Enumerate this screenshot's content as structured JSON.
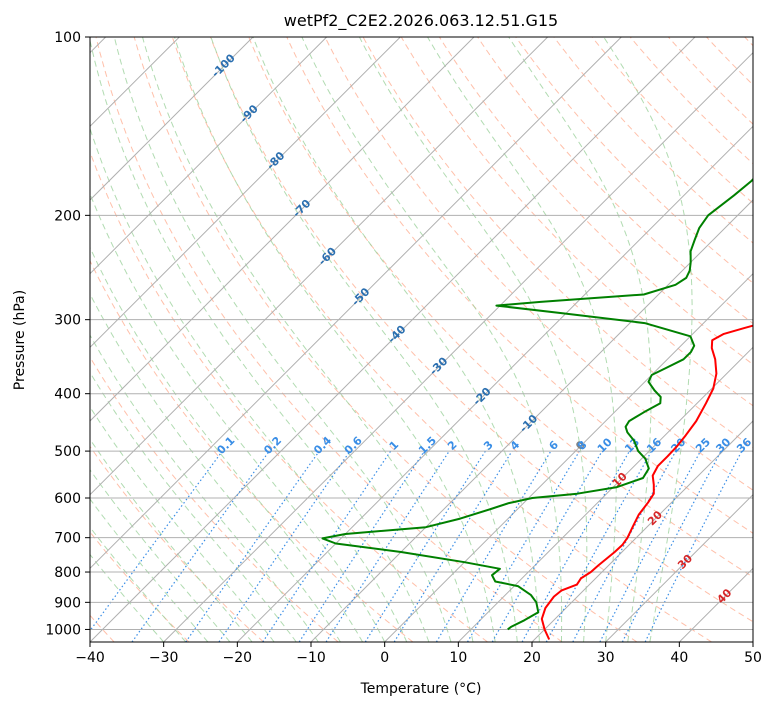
{
  "chart_data": {
    "type": "line",
    "title": "wetPf2_C2E2.2026.063.12.51.G15",
    "xlabel": "Temperature (°C)",
    "ylabel": "Pressure (hPa)",
    "xlim": [
      -40,
      50
    ],
    "ylim": [
      1050,
      100
    ],
    "y_scale": "log",
    "x_ticks": [
      -40,
      -30,
      -20,
      -10,
      0,
      10,
      20,
      30,
      40,
      50
    ],
    "y_ticks": [
      100,
      200,
      300,
      400,
      500,
      600,
      700,
      800,
      900,
      1000
    ],
    "grid": true,
    "colors": {
      "temperature": "#ff0000",
      "dewpoint": "#008000",
      "isotherm": "#b0b0b0",
      "dry_adiabat": "#ffb59b",
      "moist_adiabat": "#9ed29e",
      "mixing_ratio": "#3a8ee6",
      "freezing_level_label": "#808080",
      "isotherm_label": "#2b6fb0",
      "warm_isotherm_label": "#d62728"
    },
    "series": [
      {
        "key": "temperature",
        "points": [
          [
            22.0,
            1040
          ],
          [
            20.0,
            1000
          ],
          [
            18.2,
            960
          ],
          [
            17.2,
            920
          ],
          [
            16.8,
            880
          ],
          [
            17.0,
            860
          ],
          [
            18.3,
            840
          ],
          [
            18.0,
            820
          ],
          [
            18.5,
            800
          ],
          [
            18.6,
            780
          ],
          [
            19.0,
            740
          ],
          [
            19.1,
            720
          ],
          [
            18.8,
            700
          ],
          [
            18.0,
            670
          ],
          [
            17.2,
            640
          ],
          [
            16.8,
            610
          ],
          [
            16.4,
            590
          ],
          [
            15.2,
            570
          ],
          [
            13.8,
            550
          ],
          [
            13.2,
            530
          ],
          [
            13.2,
            510
          ],
          [
            13.1,
            490
          ],
          [
            12.8,
            470
          ],
          [
            12.3,
            445
          ],
          [
            11.2,
            415
          ],
          [
            10.2,
            392
          ],
          [
            8.6,
            370
          ],
          [
            6.5,
            350
          ],
          [
            4.5,
            335
          ],
          [
            3.5,
            325
          ],
          [
            4.2,
            317
          ],
          [
            6.2,
            310
          ],
          [
            8.5,
            302
          ],
          [
            10.0,
            295
          ],
          [
            10.8,
            285
          ],
          [
            11.0,
            270
          ],
          [
            10.7,
            250
          ],
          [
            10.5,
            232
          ],
          [
            9.5,
            213
          ],
          [
            7.8,
            195
          ],
          [
            6.4,
            180
          ],
          [
            5.7,
            163
          ],
          [
            5.0,
            148
          ],
          [
            5.2,
            135
          ],
          [
            6.0,
            125
          ],
          [
            5.2,
            116
          ],
          [
            5.8,
            108
          ],
          [
            6.3,
            100
          ]
        ]
      },
      {
        "key": "dewpoint",
        "points": [
          [
            15.0,
            1000
          ],
          [
            15.1,
            990
          ],
          [
            16.0,
            965
          ],
          [
            16.8,
            935
          ],
          [
            15.2,
            900
          ],
          [
            13.5,
            875
          ],
          [
            10.5,
            845
          ],
          [
            6.8,
            830
          ],
          [
            5.5,
            810
          ],
          [
            5.7,
            790
          ],
          [
            0.0,
            770
          ],
          [
            -10.0,
            740
          ],
          [
            -20.0,
            716
          ],
          [
            -22.5,
            702
          ],
          [
            -20.0,
            690
          ],
          [
            -10.0,
            672
          ],
          [
            -6.5,
            650
          ],
          [
            -3.5,
            625
          ],
          [
            -2.0,
            612
          ],
          [
            0.5,
            600
          ],
          [
            6.0,
            590
          ],
          [
            10.5,
            575
          ],
          [
            12.8,
            555
          ],
          [
            12.3,
            535
          ],
          [
            10.5,
            515
          ],
          [
            8.5,
            500
          ],
          [
            6.5,
            480
          ],
          [
            4.5,
            465
          ],
          [
            3.5,
            455
          ],
          [
            3.2,
            445
          ],
          [
            4.0,
            430
          ],
          [
            5.0,
            415
          ],
          [
            4.2,
            405
          ],
          [
            2.5,
            395
          ],
          [
            0.5,
            382
          ],
          [
            0.0,
            372
          ],
          [
            1.0,
            362
          ],
          [
            2.2,
            350
          ],
          [
            2.2,
            340
          ],
          [
            1.8,
            332
          ],
          [
            0.0,
            320
          ],
          [
            -8.0,
            304
          ],
          [
            -20.0,
            293
          ],
          [
            -30.5,
            284
          ],
          [
            -25.0,
            280
          ],
          [
            -12.0,
            272
          ],
          [
            -9.0,
            262
          ],
          [
            -8.5,
            255
          ],
          [
            -9.0,
            248
          ],
          [
            -10.0,
            240
          ],
          [
            -11.5,
            230
          ],
          [
            -12.5,
            220
          ],
          [
            -13.5,
            210
          ],
          [
            -14.0,
            200
          ],
          [
            -13.2,
            185
          ],
          [
            -12.8,
            175
          ],
          [
            -13.0,
            162
          ],
          [
            -12.0,
            148
          ],
          [
            -10.0,
            138
          ],
          [
            -7.0,
            128
          ],
          [
            -4.5,
            122
          ],
          [
            -3.5,
            118
          ],
          [
            -2.0,
            112
          ],
          [
            -1.0,
            105
          ],
          [
            0.0,
            100
          ]
        ]
      }
    ],
    "annotations": {
      "skewed_isotherm_labels": [
        "-100",
        "-90",
        "-80",
        "-70",
        "-60",
        "-50",
        "-40",
        "-30",
        "-20",
        "-10",
        "0",
        "10",
        "20",
        "30",
        "40"
      ],
      "mixing_ratio_labels": [
        "0.1",
        "0.2",
        "0.4",
        "0.6",
        "1",
        "1.5",
        "2",
        "3",
        "4",
        "6",
        "8",
        "10",
        "13",
        "16",
        "20",
        "25",
        "30",
        "36"
      ]
    }
  }
}
